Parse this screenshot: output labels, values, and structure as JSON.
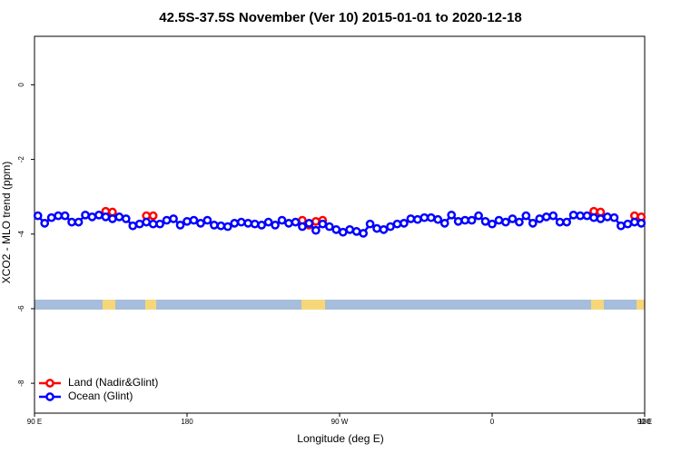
{
  "chart_data": {
    "type": "line",
    "title": "42.5S-37.5S November (Ver 10)   2015-01-01 to 2020-12-18",
    "x_label": "Longitude (deg E)",
    "y_label": "XCO2 - MLO trend (ppm)",
    "xlim": [
      90,
      450
    ],
    "xticks": [
      {
        "value": 90,
        "label": "90 E"
      },
      180,
      {
        "value": 270,
        "label": "90 W"
      },
      {
        "value": 360,
        "label": "0"
      },
      {
        "value": 450,
        "label": "90 E"
      },
      {
        "value": 540,
        "label": "180"
      }
    ],
    "ylim": [
      -8.8,
      1.3
    ],
    "yticks": [
      0,
      -2,
      -4,
      -6,
      -8
    ],
    "legend": "bottom-left",
    "series": [
      {
        "name": "Land (Nadir&Glint)",
        "color": "#ff0000",
        "x": [
          132,
          136,
          140,
          156,
          160,
          164,
          248,
          252,
          256,
          260,
          264,
          420,
          424,
          428,
          444,
          448
        ],
        "values": [
          -3.39,
          -3.41,
          null,
          -3.51,
          -3.51,
          null,
          -3.63,
          -3.76,
          -3.66,
          -3.63,
          null,
          -3.39,
          -3.41,
          null,
          -3.51,
          -3.54
        ]
      },
      {
        "name": "Ocean (Glint)",
        "color": "#0000ff",
        "x": [
          92,
          96,
          100,
          104,
          108,
          112,
          116,
          120,
          124,
          128,
          132,
          136,
          140,
          144,
          148,
          152,
          156,
          160,
          164,
          168,
          172,
          176,
          180,
          184,
          188,
          192,
          196,
          200,
          204,
          208,
          212,
          216,
          220,
          224,
          228,
          232,
          236,
          240,
          244,
          248,
          252,
          256,
          260,
          264,
          268,
          272,
          276,
          280,
          284,
          288,
          292,
          296,
          300,
          304,
          308,
          312,
          316,
          320,
          324,
          328,
          332,
          336,
          340,
          344,
          348,
          352,
          356,
          360,
          364,
          368,
          372,
          376,
          380,
          384,
          388,
          392,
          396,
          400,
          404,
          408,
          412,
          416,
          420,
          424,
          428,
          432,
          436,
          440,
          444,
          448
        ],
        "values": [
          -3.51,
          -3.71,
          -3.56,
          -3.51,
          -3.51,
          -3.68,
          -3.68,
          -3.49,
          -3.54,
          -3.49,
          -3.54,
          -3.59,
          -3.54,
          -3.59,
          -3.78,
          -3.73,
          -3.68,
          -3.73,
          -3.73,
          -3.63,
          -3.59,
          -3.76,
          -3.66,
          -3.63,
          -3.71,
          -3.63,
          -3.76,
          -3.78,
          -3.8,
          -3.71,
          -3.68,
          -3.71,
          -3.73,
          -3.76,
          -3.68,
          -3.76,
          -3.63,
          -3.71,
          -3.68,
          -3.8,
          -3.71,
          -3.9,
          -3.73,
          -3.8,
          -3.88,
          -3.95,
          -3.88,
          -3.93,
          -3.98,
          -3.73,
          -3.85,
          -3.88,
          -3.8,
          -3.73,
          -3.71,
          -3.59,
          -3.61,
          -3.56,
          -3.56,
          -3.61,
          -3.71,
          -3.49,
          -3.66,
          -3.63,
          -3.63,
          -3.51,
          -3.66,
          -3.73,
          -3.63,
          -3.68,
          -3.59,
          -3.68,
          -3.51,
          -3.71,
          -3.59,
          -3.54,
          -3.51,
          -3.68,
          -3.68,
          -3.49,
          -3.51,
          -3.51,
          -3.56,
          -3.59,
          -3.54,
          -3.56,
          -3.78,
          -3.73,
          -3.68,
          -3.71
        ]
      }
    ]
  }
}
